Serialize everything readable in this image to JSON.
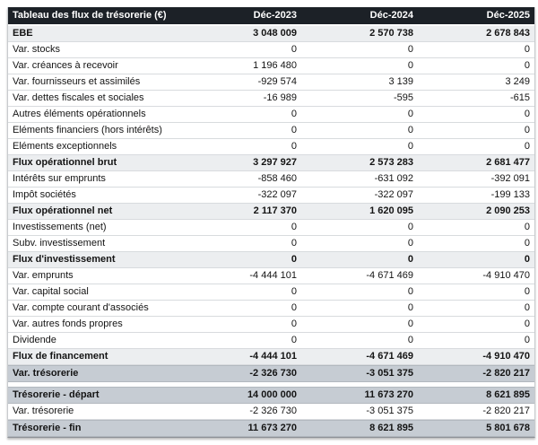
{
  "table": {
    "header": {
      "title": "Tableau des flux de trésorerie (€)",
      "columns": [
        "Déc-2023",
        "Déc-2024",
        "Déc-2025"
      ]
    },
    "rows": [
      {
        "label": "EBE",
        "values": [
          "3 048 009",
          "2 570 738",
          "2 678 843"
        ],
        "style": "subtotal"
      },
      {
        "label": "Var. stocks",
        "values": [
          "0",
          "0",
          "0"
        ],
        "style": "normal"
      },
      {
        "label": "Var. créances à recevoir",
        "values": [
          "1 196 480",
          "0",
          "0"
        ],
        "style": "normal"
      },
      {
        "label": "Var. fournisseurs et assimilés",
        "values": [
          "-929 574",
          "3 139",
          "3 249"
        ],
        "style": "normal"
      },
      {
        "label": "Var. dettes fiscales et sociales",
        "values": [
          "-16 989",
          "-595",
          "-615"
        ],
        "style": "normal"
      },
      {
        "label": "Autres éléments opérationnels",
        "values": [
          "0",
          "0",
          "0"
        ],
        "style": "normal"
      },
      {
        "label": "Eléments financiers (hors intérêts)",
        "values": [
          "0",
          "0",
          "0"
        ],
        "style": "normal"
      },
      {
        "label": "Eléments exceptionnels",
        "values": [
          "0",
          "0",
          "0"
        ],
        "style": "normal"
      },
      {
        "label": "Flux opérationnel brut",
        "values": [
          "3 297 927",
          "2 573 283",
          "2 681 477"
        ],
        "style": "subtotal"
      },
      {
        "label": "Intérêts sur emprunts",
        "values": [
          "-858 460",
          "-631 092",
          "-392 091"
        ],
        "style": "normal"
      },
      {
        "label": "Impôt sociétés",
        "values": [
          "-322 097",
          "-322 097",
          "-199 133"
        ],
        "style": "normal"
      },
      {
        "label": "Flux opérationnel net",
        "values": [
          "2 117 370",
          "1 620 095",
          "2 090 253"
        ],
        "style": "subtotal"
      },
      {
        "label": "Investissements (net)",
        "values": [
          "0",
          "0",
          "0"
        ],
        "style": "normal"
      },
      {
        "label": "Subv. investissement",
        "values": [
          "0",
          "0",
          "0"
        ],
        "style": "normal"
      },
      {
        "label": "Flux d'investissement",
        "values": [
          "0",
          "0",
          "0"
        ],
        "style": "subtotal"
      },
      {
        "label": "Var. emprunts",
        "values": [
          "-4 444 101",
          "-4 671 469",
          "-4 910 470"
        ],
        "style": "normal"
      },
      {
        "label": "Var. capital social",
        "values": [
          "0",
          "0",
          "0"
        ],
        "style": "normal"
      },
      {
        "label": "Var. compte courant d'associés",
        "values": [
          "0",
          "0",
          "0"
        ],
        "style": "normal"
      },
      {
        "label": "Var. autres fonds propres",
        "values": [
          "0",
          "0",
          "0"
        ],
        "style": "normal"
      },
      {
        "label": "Dividende",
        "values": [
          "0",
          "0",
          "0"
        ],
        "style": "normal"
      },
      {
        "label": "Flux de financement",
        "values": [
          "-4 444 101",
          "-4 671 469",
          "-4 910 470"
        ],
        "style": "subtotal"
      },
      {
        "label": "Var. trésorerie",
        "values": [
          "-2 326 730",
          "-3 051 375",
          "-2 820 217"
        ],
        "style": "highlight"
      }
    ],
    "summary_rows": [
      {
        "label": "Trésorerie - départ",
        "values": [
          "14 000 000",
          "11 673 270",
          "8 621 895"
        ],
        "style": "highlight"
      },
      {
        "label": "Var. trésorerie",
        "values": [
          "-2 326 730",
          "-3 051 375",
          "-2 820 217"
        ],
        "style": "normal"
      },
      {
        "label": "Trésorerie - fin",
        "values": [
          "11 673 270",
          "8 621 895",
          "5 801 678"
        ],
        "style": "highlight"
      }
    ],
    "colors": {
      "header_bg": "#1c2127",
      "header_text": "#ffffff",
      "subtotal_bg": "#eceef0",
      "highlight_bg": "#c6ccd3",
      "row_border": "#d8dbde"
    }
  }
}
